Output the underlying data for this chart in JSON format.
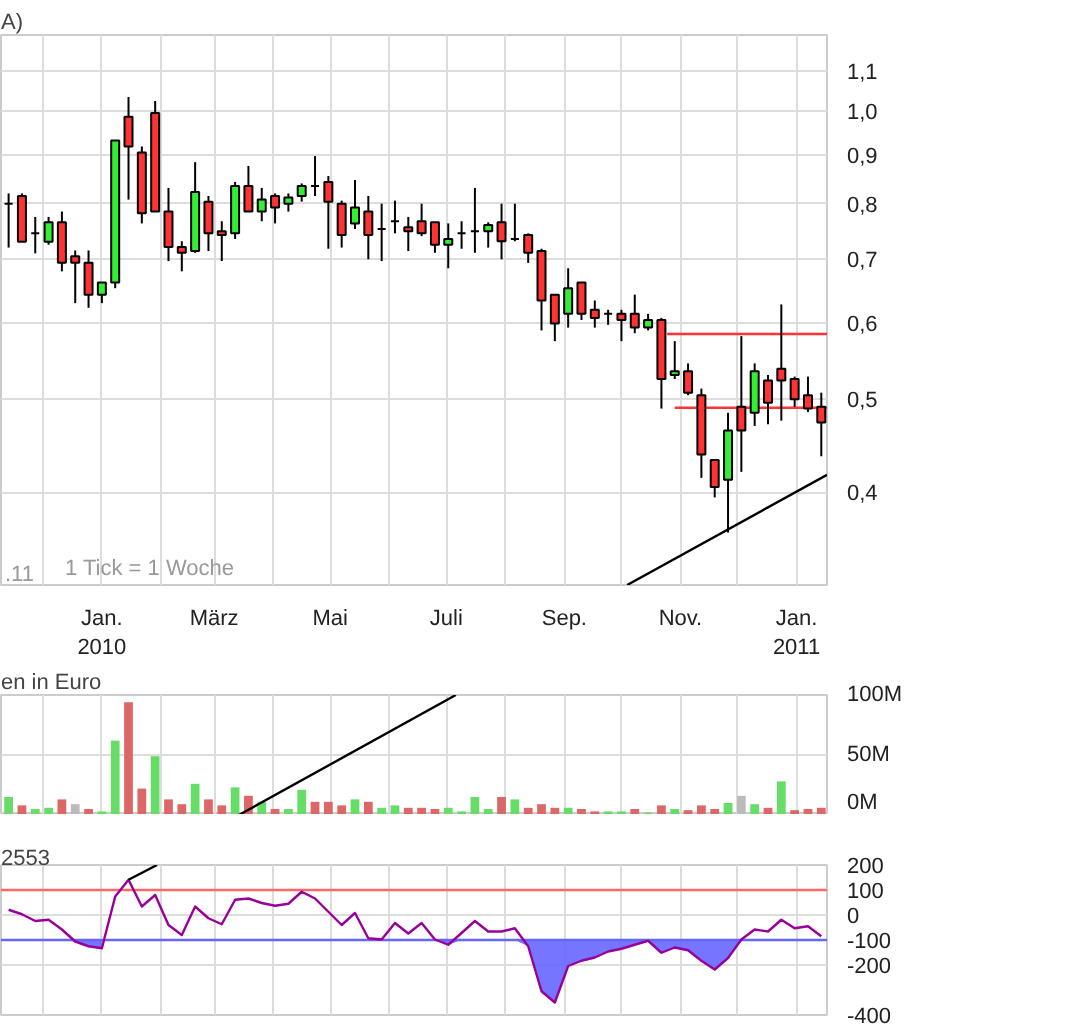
{
  "chart_data": [
    {
      "type": "candlestick",
      "title": "A)",
      "log": "y",
      "grid": true,
      "x": [
        "2009-11-13",
        "2009-11-20",
        "2009-11-27",
        "2009-12-04",
        "2009-12-11",
        "2009-12-18",
        "2009-12-25",
        "2010-01-01",
        "2010-01-08",
        "2010-01-15",
        "2010-01-22",
        "2010-01-29",
        "2010-02-05",
        "2010-02-12",
        "2010-02-19",
        "2010-02-26",
        "2010-03-05",
        "2010-03-12",
        "2010-03-19",
        "2010-03-26",
        "2010-04-02",
        "2010-04-09",
        "2010-04-16",
        "2010-04-23",
        "2010-04-30",
        "2010-05-07",
        "2010-05-14",
        "2010-05-21",
        "2010-05-28",
        "2010-06-04",
        "2010-06-11",
        "2010-06-18",
        "2010-06-25",
        "2010-07-02",
        "2010-07-09",
        "2010-07-16",
        "2010-07-23",
        "2010-07-30",
        "2010-08-06",
        "2010-08-13",
        "2010-08-20",
        "2010-08-27",
        "2010-09-03",
        "2010-09-10",
        "2010-09-17",
        "2010-09-24",
        "2010-10-01",
        "2010-10-08",
        "2010-10-15",
        "2010-10-22",
        "2010-10-29",
        "2010-11-05",
        "2010-11-12",
        "2010-11-19",
        "2010-11-26",
        "2010-12-03",
        "2010-12-10",
        "2010-12-17",
        "2010-12-24",
        "2010-12-31",
        "2011-01-07",
        "2011-01-14"
      ],
      "ohlc": [
        [
          0.8,
          0.82,
          0.72,
          0.8
        ],
        [
          0.815,
          0.82,
          0.73,
          0.73
        ],
        [
          0.745,
          0.775,
          0.71,
          0.745
        ],
        [
          0.73,
          0.775,
          0.725,
          0.765
        ],
        [
          0.765,
          0.785,
          0.68,
          0.694
        ],
        [
          0.705,
          0.715,
          0.63,
          0.694
        ],
        [
          0.694,
          0.715,
          0.623,
          0.643
        ],
        [
          0.643,
          0.662,
          0.63,
          0.662
        ],
        [
          0.662,
          0.931,
          0.653,
          0.931
        ],
        [
          0.986,
          1.034,
          0.808,
          0.918
        ],
        [
          0.905,
          0.918,
          0.763,
          0.782
        ],
        [
          0.995,
          1.024,
          0.785,
          0.785
        ],
        [
          0.785,
          0.831,
          0.697,
          0.721
        ],
        [
          0.721,
          0.731,
          0.68,
          0.711
        ],
        [
          0.714,
          0.884,
          0.711,
          0.823
        ],
        [
          0.804,
          0.815,
          0.714,
          0.745
        ],
        [
          0.749,
          0.767,
          0.697,
          0.742
        ],
        [
          0.745,
          0.843,
          0.735,
          0.835
        ],
        [
          0.835,
          0.876,
          0.785,
          0.785
        ],
        [
          0.785,
          0.831,
          0.767,
          0.808
        ],
        [
          0.815,
          0.82,
          0.763,
          0.793
        ],
        [
          0.8,
          0.82,
          0.785,
          0.812
        ],
        [
          0.815,
          0.84,
          0.804,
          0.835
        ],
        [
          0.835,
          0.897,
          0.815,
          0.835
        ],
        [
          0.843,
          0.855,
          0.718,
          0.804
        ],
        [
          0.8,
          0.806,
          0.72,
          0.742
        ],
        [
          0.763,
          0.847,
          0.753,
          0.793
        ],
        [
          0.785,
          0.815,
          0.7,
          0.742
        ],
        [
          0.753,
          0.8,
          0.697,
          0.753
        ],
        [
          0.767,
          0.806,
          0.745,
          0.767
        ],
        [
          0.756,
          0.775,
          0.714,
          0.749
        ],
        [
          0.767,
          0.8,
          0.74,
          0.745
        ],
        [
          0.765,
          0.765,
          0.711,
          0.725
        ],
        [
          0.725,
          0.763,
          0.685,
          0.735
        ],
        [
          0.745,
          0.767,
          0.718,
          0.745
        ],
        [
          0.749,
          0.831,
          0.711,
          0.749
        ],
        [
          0.749,
          0.765,
          0.72,
          0.76
        ],
        [
          0.765,
          0.8,
          0.7,
          0.731
        ],
        [
          0.735,
          0.8,
          0.731,
          0.735
        ],
        [
          0.742,
          0.745,
          0.694,
          0.711
        ],
        [
          0.714,
          0.718,
          0.59,
          0.634
        ],
        [
          0.643,
          0.643,
          0.575,
          0.6
        ],
        [
          0.614,
          0.685,
          0.594,
          0.653
        ],
        [
          0.662,
          0.662,
          0.605,
          0.614
        ],
        [
          0.62,
          0.634,
          0.594,
          0.608
        ],
        [
          0.614,
          0.62,
          0.598,
          0.614
        ],
        [
          0.614,
          0.62,
          0.575,
          0.605
        ],
        [
          0.614,
          0.643,
          0.586,
          0.594
        ],
        [
          0.594,
          0.614,
          0.59,
          0.605
        ],
        [
          0.605,
          0.608,
          0.489,
          0.525
        ],
        [
          0.53,
          0.575,
          0.525,
          0.535
        ],
        [
          0.535,
          0.545,
          0.505,
          0.508
        ],
        [
          0.505,
          0.513,
          0.414,
          0.438
        ],
        [
          0.432,
          0.432,
          0.395,
          0.405
        ],
        [
          0.412,
          0.484,
          0.363,
          0.464
        ],
        [
          0.491,
          0.582,
          0.42,
          0.464
        ],
        [
          0.484,
          0.545,
          0.469,
          0.535
        ],
        [
          0.523,
          0.53,
          0.471,
          0.496
        ],
        [
          0.538,
          0.628,
          0.475,
          0.523
        ],
        [
          0.525,
          0.528,
          0.491,
          0.5
        ],
        [
          0.505,
          0.528,
          0.485,
          0.489
        ],
        [
          0.491,
          0.508,
          0.436,
          0.473
        ]
      ],
      "colors": [
        "#000000",
        "#ff3333",
        "#000000",
        "#33ee33",
        "#ff3333",
        "#ff3333",
        "#ff3333",
        "#33ee33",
        "#33ee33",
        "#ff3333",
        "#ff3333",
        "#ff3333",
        "#ff3333",
        "#ff3333",
        "#33ee33",
        "#ff3333",
        "#ff3333",
        "#33ee33",
        "#ff3333",
        "#33ee33",
        "#ff3333",
        "#33ee33",
        "#33ee33",
        "#000000",
        "#ff3333",
        "#ff3333",
        "#33ee33",
        "#ff3333",
        "#000000",
        "#000000",
        "#ff3333",
        "#ff3333",
        "#ff3333",
        "#33ee33",
        "#000000",
        "#000000",
        "#33ee33",
        "#ff3333",
        "#000000",
        "#ff3333",
        "#ff3333",
        "#ff3333",
        "#33ee33",
        "#ff3333",
        "#ff3333",
        "#000000",
        "#ff3333",
        "#ff3333",
        "#33ee33",
        "#ff3333",
        "#33ee33",
        "#ff3333",
        "#ff3333",
        "#ff3333",
        "#33ee33",
        "#ff3333",
        "#33ee33",
        "#ff3333",
        "#ff3333",
        "#ff3333",
        "#ff3333",
        "#ff3333"
      ],
      "series": [
        {
          "type": "line",
          "color": "#000000",
          "x": [
            "2010-10-04",
            "2011-01-17"
          ],
          "values": [
            0.32,
            0.417
          ]
        },
        {
          "type": "line",
          "color": "#ff3333",
          "x": [
            "2010-10-25",
            "2011-01-17"
          ],
          "values": [
            0.585,
            0.585
          ]
        },
        {
          "type": "line",
          "color": "#ff3333",
          "x": [
            "2010-10-29",
            "2011-01-17"
          ],
          "values": [
            0.49,
            0.49
          ]
        }
      ],
      "xlim": [
        "2009-11-09",
        "2011-01-17"
      ],
      "xticks": [
        {
          "value": "2009-12-01",
          "label": null
        },
        {
          "value": "2010-01-01",
          "label": "Jan.\n2010"
        },
        {
          "value": "2010-02-01",
          "label": null
        },
        {
          "value": "2010-03-01",
          "label": "März"
        },
        {
          "value": "2010-04-01",
          "label": null
        },
        {
          "value": "2010-05-01",
          "label": "Mai"
        },
        {
          "value": "2010-06-01",
          "label": null
        },
        {
          "value": "2010-07-01",
          "label": "Juli"
        },
        {
          "value": "2010-08-01",
          "label": null
        },
        {
          "value": "2010-09-01",
          "label": "Sep."
        },
        {
          "value": "2010-10-01",
          "label": null
        },
        {
          "value": "2010-11-01",
          "label": "Nov."
        },
        {
          "value": "2010-12-01",
          "label": null
        },
        {
          "value": "2011-01-01",
          "label": "Jan.\n2011"
        }
      ],
      "ylim": [
        0.32,
        1.2
      ],
      "yticks": [
        {
          "value": 0.4,
          "label": "0,4"
        },
        {
          "value": 0.5,
          "label": "0,5"
        },
        {
          "value": 0.6,
          "label": "0,6"
        },
        {
          "value": 0.7,
          "label": "0,7"
        },
        {
          "value": 0.8,
          "label": "0,8"
        },
        {
          "value": 0.9,
          "label": "0,9"
        },
        {
          "value": 1.0,
          "label": "1,0"
        },
        {
          "value": 1.1,
          "label": "1,1"
        }
      ],
      "annotations": [
        ".11",
        "1 Tick = 1 Woche"
      ]
    },
    {
      "type": "bar",
      "title": "en in Euro",
      "grid": true,
      "tick_labels": "y",
      "x": [
        "2009-11-13",
        "2009-11-20",
        "2009-11-27",
        "2009-12-04",
        "2009-12-11",
        "2009-12-18",
        "2009-12-25",
        "2010-01-01",
        "2010-01-08",
        "2010-01-15",
        "2010-01-22",
        "2010-01-29",
        "2010-02-05",
        "2010-02-12",
        "2010-02-19",
        "2010-02-26",
        "2010-03-05",
        "2010-03-12",
        "2010-03-19",
        "2010-03-26",
        "2010-04-02",
        "2010-04-09",
        "2010-04-16",
        "2010-04-23",
        "2010-04-30",
        "2010-05-07",
        "2010-05-14",
        "2010-05-21",
        "2010-05-28",
        "2010-06-04",
        "2010-06-11",
        "2010-06-18",
        "2010-06-25",
        "2010-07-02",
        "2010-07-09",
        "2010-07-16",
        "2010-07-23",
        "2010-07-30",
        "2010-08-06",
        "2010-08-13",
        "2010-08-20",
        "2010-08-27",
        "2010-09-03",
        "2010-09-10",
        "2010-09-17",
        "2010-09-24",
        "2010-10-01",
        "2010-10-08",
        "2010-10-15",
        "2010-10-22",
        "2010-10-29",
        "2010-11-05",
        "2010-11-12",
        "2010-11-19",
        "2010-11-26",
        "2010-12-03",
        "2010-12-10",
        "2010-12-17",
        "2010-12-24",
        "2010-12-31",
        "2011-01-07",
        "2011-01-14"
      ],
      "values": [
        15,
        8,
        5,
        6,
        13,
        9,
        5,
        3,
        62,
        94,
        22,
        49,
        13,
        9,
        26,
        13,
        8,
        23,
        16,
        11,
        5,
        5,
        21,
        11,
        11,
        8,
        13,
        11,
        6,
        8,
        6,
        6,
        5,
        6,
        3,
        15,
        5,
        15,
        13,
        6,
        9,
        6,
        6,
        5,
        3,
        3,
        3,
        5,
        2,
        8,
        5,
        4,
        8,
        5,
        10,
        16,
        9,
        6,
        28,
        4,
        5,
        6
      ],
      "colors": [
        "#66dd66",
        "#dd6666",
        "#66dd66",
        "#66dd66",
        "#dd6666",
        "#bbbbbb",
        "#dd6666",
        "#66dd66",
        "#66dd66",
        "#dd6666",
        "#dd6666",
        "#66dd66",
        "#dd6666",
        "#dd6666",
        "#66dd66",
        "#dd6666",
        "#dd6666",
        "#66dd66",
        "#dd6666",
        "#66dd66",
        "#dd6666",
        "#66dd66",
        "#66dd66",
        "#dd6666",
        "#dd6666",
        "#dd6666",
        "#66dd66",
        "#dd6666",
        "#66dd66",
        "#66dd66",
        "#dd6666",
        "#dd6666",
        "#dd6666",
        "#66dd66",
        "#66dd66",
        "#66dd66",
        "#66dd66",
        "#dd6666",
        "#66dd66",
        "#dd6666",
        "#dd6666",
        "#dd6666",
        "#66dd66",
        "#dd6666",
        "#dd6666",
        "#66dd66",
        "#66dd66",
        "#dd6666",
        "#66dd66",
        "#dd6666",
        "#66dd66",
        "#dd6666",
        "#dd6666",
        "#dd6666",
        "#66dd66",
        "#bbbbbb",
        "#66dd66",
        "#dd6666",
        "#66dd66",
        "#dd6666",
        "#dd6666",
        "#dd6666"
      ],
      "series": [
        {
          "type": "line",
          "color": "#000000",
          "x": [
            "2010-03-14",
            "2010-07-06"
          ],
          "values": [
            0,
            100
          ]
        }
      ],
      "xlim": [
        "2009-11-09",
        "2011-01-17"
      ],
      "xticks": [
        {
          "value": "2009-12-01",
          "label": null
        },
        {
          "value": "2010-01-01",
          "label": null
        },
        {
          "value": "2010-02-01",
          "label": null
        },
        {
          "value": "2010-03-01",
          "label": null
        },
        {
          "value": "2010-04-01",
          "label": null
        },
        {
          "value": "2010-05-01",
          "label": null
        },
        {
          "value": "2010-06-01",
          "label": null
        },
        {
          "value": "2010-07-01",
          "label": null
        },
        {
          "value": "2010-08-01",
          "label": null
        },
        {
          "value": "2010-09-01",
          "label": null
        },
        {
          "value": "2010-10-01",
          "label": null
        },
        {
          "value": "2010-11-01",
          "label": null
        },
        {
          "value": "2010-12-01",
          "label": null
        },
        {
          "value": "2011-01-01",
          "label": null
        }
      ],
      "ylim": [
        0,
        100
      ],
      "yticks": [
        {
          "value": 0,
          "label": "0M"
        },
        {
          "value": 50,
          "label": "50M"
        },
        {
          "value": 100,
          "label": "100M"
        }
      ]
    },
    {
      "type": "line",
      "title": "2553",
      "grid": true,
      "tick_labels": "y",
      "x": [
        "2009-11-13",
        "2009-11-20",
        "2009-11-27",
        "2009-12-04",
        "2009-12-11",
        "2009-12-18",
        "2009-12-25",
        "2010-01-01",
        "2010-01-08",
        "2010-01-15",
        "2010-01-22",
        "2010-01-29",
        "2010-02-05",
        "2010-02-12",
        "2010-02-19",
        "2010-02-26",
        "2010-03-05",
        "2010-03-12",
        "2010-03-19",
        "2010-03-26",
        "2010-04-02",
        "2010-04-09",
        "2010-04-16",
        "2010-04-23",
        "2010-04-30",
        "2010-05-07",
        "2010-05-14",
        "2010-05-21",
        "2010-05-28",
        "2010-06-04",
        "2010-06-11",
        "2010-06-18",
        "2010-06-25",
        "2010-07-02",
        "2010-07-09",
        "2010-07-16",
        "2010-07-23",
        "2010-07-30",
        "2010-08-06",
        "2010-08-13",
        "2010-08-20",
        "2010-08-27",
        "2010-09-03",
        "2010-09-10",
        "2010-09-17",
        "2010-09-24",
        "2010-10-01",
        "2010-10-08",
        "2010-10-15",
        "2010-10-22",
        "2010-10-29",
        "2010-11-05",
        "2010-11-12",
        "2010-11-19",
        "2010-11-26",
        "2010-12-03",
        "2010-12-10",
        "2010-12-17",
        "2010-12-24",
        "2010-12-31",
        "2011-01-07",
        "2011-01-14"
      ],
      "series": [
        {
          "color": "#990099",
          "lower": [
            null,
            null,
            null,
            null,
            -100,
            -106,
            -125,
            -133,
            null,
            null,
            null,
            null,
            null,
            null,
            null,
            null,
            null,
            null,
            null,
            null,
            null,
            null,
            null,
            null,
            null,
            null,
            null,
            null,
            null,
            null,
            null,
            null,
            -100,
            -119,
            -100,
            null,
            null,
            null,
            -100,
            -125,
            -305,
            -350,
            -204,
            -183,
            -170,
            -146,
            -135,
            -119,
            -103,
            -151,
            -130,
            -141,
            -183,
            -218,
            -172,
            -100,
            null,
            null,
            null,
            null,
            null,
            null
          ],
          "upper": [
            null,
            null,
            null,
            null,
            -100,
            -100,
            -100,
            -100,
            null,
            null,
            null,
            null,
            null,
            null,
            null,
            null,
            null,
            null,
            null,
            null,
            null,
            null,
            null,
            null,
            null,
            null,
            null,
            null,
            null,
            null,
            null,
            null,
            -100,
            -100,
            -100,
            null,
            null,
            null,
            -100,
            -100,
            -100,
            -100,
            -100,
            -100,
            -100,
            -100,
            -100,
            -100,
            -100,
            -100,
            -100,
            -100,
            -100,
            -100,
            -100,
            -100,
            null,
            null,
            null,
            null,
            null,
            null
          ],
          "values": [
            21,
            3,
            -24,
            -19,
            -58,
            -106,
            -125,
            -133,
            74,
            141,
            34,
            80,
            -40,
            -80,
            34,
            -13,
            -37,
            61,
            66,
            48,
            37,
            45,
            93,
            66,
            13,
            -40,
            8,
            -93,
            -98,
            -32,
            -74,
            -32,
            -98,
            -119,
            -72,
            -24,
            -66,
            -66,
            -53,
            -125,
            -305,
            -350,
            -204,
            -183,
            -170,
            -146,
            -135,
            -119,
            -103,
            -151,
            -130,
            -141,
            -183,
            -218,
            -172,
            -98,
            -58,
            -66,
            -19,
            -53,
            -45,
            -85
          ]
        },
        {
          "type": "line",
          "color": "#000000",
          "x": [
            "2010-01-15",
            "2010-01-30"
          ],
          "values": [
            141,
            200
          ]
        }
      ],
      "ref_lines": [
        {
          "axis": "y",
          "value": 100,
          "label": "100",
          "color": "#ff6666"
        },
        {
          "axis": "y",
          "value": -100,
          "label": "-100",
          "color": "#6666ff"
        }
      ],
      "xlim": [
        "2009-11-09",
        "2011-01-17"
      ],
      "xticks": [
        {
          "value": "2009-12-01",
          "label": null
        },
        {
          "value": "2010-01-01",
          "label": null
        },
        {
          "value": "2010-02-01",
          "label": null
        },
        {
          "value": "2010-03-01",
          "label": null
        },
        {
          "value": "2010-04-01",
          "label": null
        },
        {
          "value": "2010-05-01",
          "label": null
        },
        {
          "value": "2010-06-01",
          "label": null
        },
        {
          "value": "2010-07-01",
          "label": null
        },
        {
          "value": "2010-08-01",
          "label": null
        },
        {
          "value": "2010-09-01",
          "label": null
        },
        {
          "value": "2010-10-01",
          "label": null
        },
        {
          "value": "2010-11-01",
          "label": null
        },
        {
          "value": "2010-12-01",
          "label": null
        },
        {
          "value": "2011-01-01",
          "label": null
        }
      ],
      "ylim": [
        -400,
        200
      ],
      "yticks": [
        -400,
        -200,
        0,
        200
      ]
    }
  ]
}
